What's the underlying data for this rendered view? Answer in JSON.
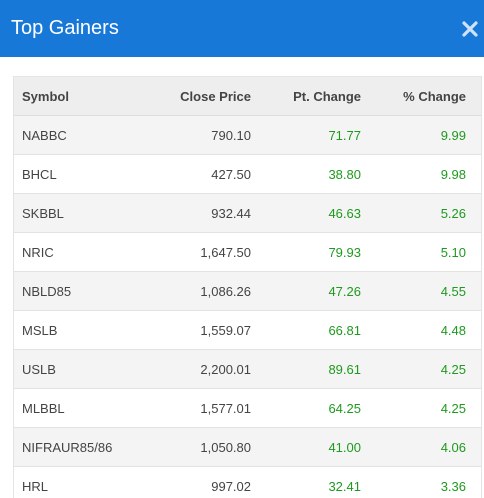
{
  "modal": {
    "title": "Top Gainers",
    "close_icon": "close-icon"
  },
  "table": {
    "headers": {
      "symbol": "Symbol",
      "close_price": "Close Price",
      "pt_change": "Pt. Change",
      "pct_change": "% Change"
    },
    "rows": [
      {
        "symbol": "NABBC",
        "close_price": "790.10",
        "pt_change": "71.77",
        "pct_change": "9.99"
      },
      {
        "symbol": "BHCL",
        "close_price": "427.50",
        "pt_change": "38.80",
        "pct_change": "9.98"
      },
      {
        "symbol": "SKBBL",
        "close_price": "932.44",
        "pt_change": "46.63",
        "pct_change": "5.26"
      },
      {
        "symbol": "NRIC",
        "close_price": "1,647.50",
        "pt_change": "79.93",
        "pct_change": "5.10"
      },
      {
        "symbol": "NBLD85",
        "close_price": "1,086.26",
        "pt_change": "47.26",
        "pct_change": "4.55"
      },
      {
        "symbol": "MSLB",
        "close_price": "1,559.07",
        "pt_change": "66.81",
        "pct_change": "4.48"
      },
      {
        "symbol": "USLB",
        "close_price": "2,200.01",
        "pt_change": "89.61",
        "pct_change": "4.25"
      },
      {
        "symbol": "MLBBL",
        "close_price": "1,577.01",
        "pt_change": "64.25",
        "pct_change": "4.25"
      },
      {
        "symbol": "NIFRAUR85/86",
        "close_price": "1,050.80",
        "pt_change": "41.00",
        "pct_change": "4.06"
      },
      {
        "symbol": "HRL",
        "close_price": "997.02",
        "pt_change": "32.41",
        "pct_change": "3.36"
      }
    ]
  },
  "colors": {
    "header_bg": "#1878d8",
    "gain_green": "#1e9a1e",
    "row_alt": "#f4f4f4"
  }
}
